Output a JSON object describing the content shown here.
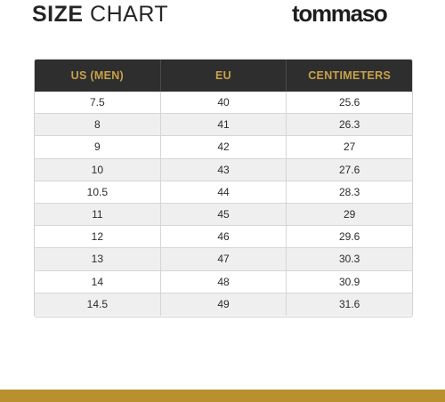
{
  "header": {
    "title_bold": "SIZE",
    "title_light": "CHART",
    "logo_text": "tommaso"
  },
  "table": {
    "columns": [
      "US (MEN)",
      "EU",
      "CENTIMETERS"
    ],
    "rows": [
      [
        "7.5",
        "40",
        "25.6"
      ],
      [
        "8",
        "41",
        "26.3"
      ],
      [
        "9",
        "42",
        "27"
      ],
      [
        "10",
        "43",
        "27.6"
      ],
      [
        "10.5",
        "44",
        "28.3"
      ],
      [
        "11",
        "45",
        "29"
      ],
      [
        "12",
        "46",
        "29.6"
      ],
      [
        "13",
        "47",
        "30.3"
      ],
      [
        "14",
        "48",
        "30.9"
      ],
      [
        "14.5",
        "49",
        "31.6"
      ]
    ]
  },
  "colors": {
    "header_bg": "#2e2e2e",
    "header_text": "#c9a24a",
    "accent_bar": "#b8912e"
  }
}
